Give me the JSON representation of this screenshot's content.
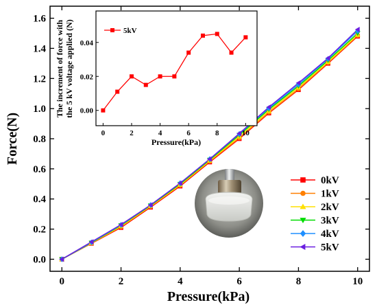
{
  "chart_data": [
    {
      "type": "line",
      "xlabel": "Pressure(kPa)",
      "ylabel": "Force(N)",
      "xlim": [
        -0.4,
        10.4
      ],
      "ylim": [
        -0.08,
        1.68
      ],
      "xticks": [
        "0",
        "2",
        "4",
        "6",
        "8",
        "10"
      ],
      "yticks": [
        "0.0",
        "0.2",
        "0.4",
        "0.6",
        "0.8",
        "1.0",
        "1.2",
        "1.4",
        "1.6"
      ],
      "x": [
        0,
        1,
        2,
        3,
        4,
        5,
        6,
        7,
        8,
        9,
        10
      ],
      "legend_position": "bottom-right",
      "grid": false,
      "series": [
        {
          "name": "0kV",
          "color": "#ff0000",
          "marker": "square",
          "values": [
            0.0,
            0.105,
            0.21,
            0.345,
            0.485,
            0.645,
            0.8,
            0.97,
            1.125,
            1.3,
            1.48
          ]
        },
        {
          "name": "1kV",
          "color": "#ff7f00",
          "marker": "circle",
          "values": [
            0.0,
            0.107,
            0.215,
            0.35,
            0.49,
            0.65,
            0.805,
            0.975,
            1.13,
            1.305,
            1.485
          ]
        },
        {
          "name": "2kV",
          "color": "#ffe000",
          "marker": "triangle-up",
          "values": [
            0.0,
            0.108,
            0.22,
            0.353,
            0.495,
            0.655,
            0.815,
            0.985,
            1.14,
            1.31,
            1.49
          ]
        },
        {
          "name": "3kV",
          "color": "#00dd00",
          "marker": "triangle-down",
          "values": [
            0.0,
            0.11,
            0.225,
            0.357,
            0.5,
            0.66,
            0.825,
            0.995,
            1.15,
            1.32,
            1.5
          ]
        },
        {
          "name": "4kV",
          "color": "#1e8fff",
          "marker": "diamond",
          "values": [
            0.0,
            0.112,
            0.228,
            0.36,
            0.505,
            0.665,
            0.832,
            1.003,
            1.16,
            1.33,
            1.515
          ]
        },
        {
          "name": "5kV",
          "color": "#6a1fe0",
          "marker": "triangle-left",
          "values": [
            0.0,
            0.115,
            0.23,
            0.36,
            0.505,
            0.665,
            0.835,
            1.01,
            1.17,
            1.335,
            1.525
          ]
        }
      ]
    },
    {
      "type": "line",
      "xlabel": "Pressure(kPa)",
      "ylabel": "The increment of force with the 5 kV voltage applied (N)",
      "ylabel_lines": [
        "The increment of force with",
        "the 5 kV voltage applied (N)"
      ],
      "xlim": [
        -0.5,
        10.8
      ],
      "ylim": [
        -0.009,
        0.0585
      ],
      "xticks": [
        "0",
        "2",
        "4",
        "6",
        "8",
        "10"
      ],
      "yticks": [
        "0.00",
        "0.02",
        "0.04"
      ],
      "x": [
        0,
        1,
        2,
        3,
        4,
        5,
        6,
        7,
        8,
        9,
        10
      ],
      "legend_position": "top-left",
      "grid": false,
      "series": [
        {
          "name": "5kV",
          "color": "#ff0000",
          "marker": "square",
          "values": [
            0.0,
            0.011,
            0.02,
            0.015,
            0.02,
            0.02,
            0.034,
            0.044,
            0.045,
            0.034,
            0.043
          ]
        }
      ]
    }
  ]
}
